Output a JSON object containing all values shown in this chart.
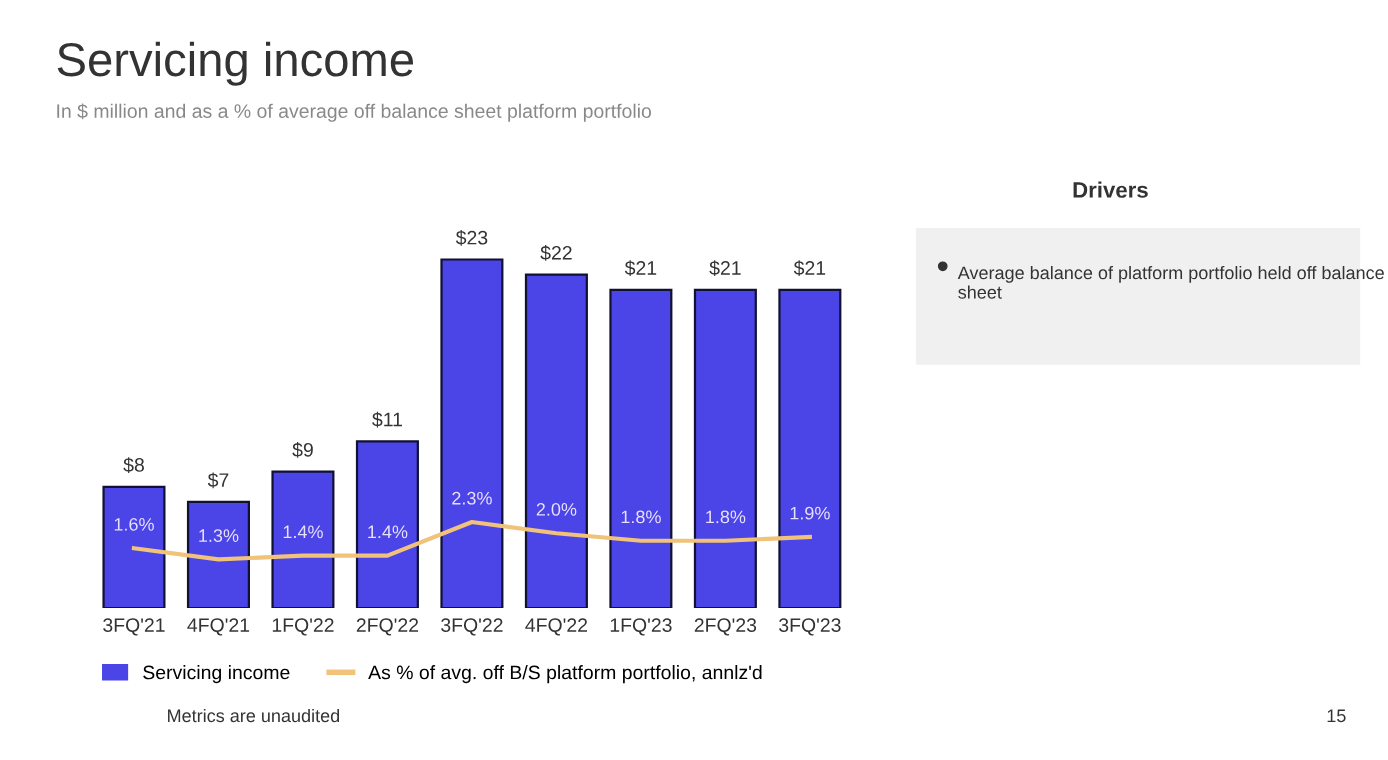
{
  "chart_data": {
    "type": "bar",
    "title": "Servicing income",
    "subtitle": "In $ million and as a % of average off balance sheet platform portfolio",
    "categories": [
      "3FQ'21",
      "4FQ'21",
      "1FQ'22",
      "2FQ'22",
      "3FQ'22",
      "4FQ'22",
      "1FQ'23",
      "2FQ'23",
      "3FQ'23"
    ],
    "series": [
      {
        "name": "Servicing income",
        "color": "#4b44e6",
        "values": [
          8,
          7,
          9,
          11,
          23,
          22,
          21,
          21,
          21
        ],
        "value_labels": [
          "$8",
          "$7",
          "$9",
          "$11",
          "$23",
          "$22",
          "$21",
          "$21",
          "$21"
        ]
      },
      {
        "name": "As % of avg. off B/S platform portfolio, annlz'd",
        "type": "line",
        "axis": "y2",
        "color": "#f0c27a",
        "values": [
          1.6,
          1.3,
          1.4,
          1.4,
          2.3,
          2.0,
          1.8,
          1.8,
          1.9
        ],
        "value_labels": [
          "1.6%",
          "1.3%",
          "1.4%",
          "1.4%",
          "2.3%",
          "2.0%",
          "1.8%",
          "1.8%",
          "1.9%"
        ]
      }
    ],
    "tick_labels": "x",
    "legend": "bottom",
    "grid": false,
    "annotations": [
      "Drivers",
      "Average balance of platform portfolio held off balance sheet",
      "Metrics are unaudited",
      "15"
    ]
  }
}
